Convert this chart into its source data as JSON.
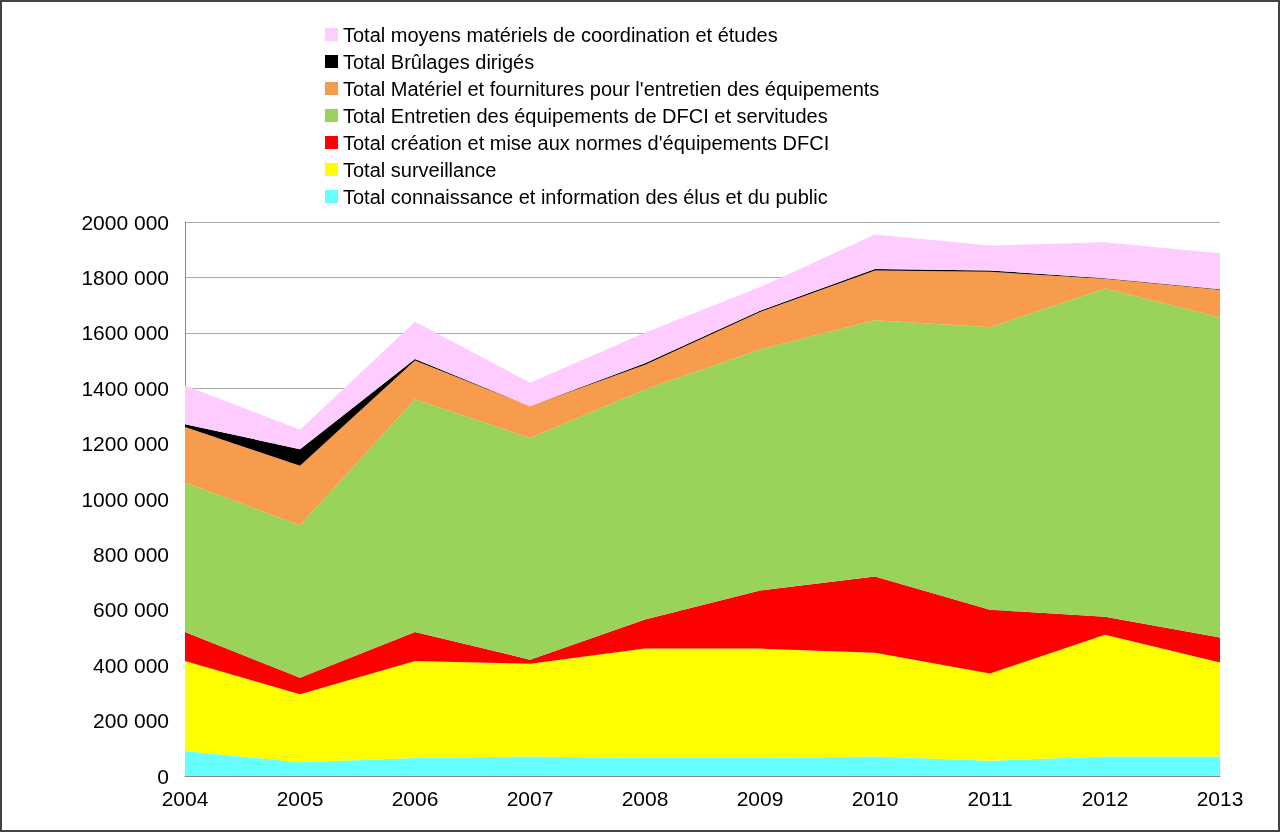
{
  "chart_data": {
    "type": "area",
    "stacked": true,
    "categories": [
      "2004",
      "2005",
      "2006",
      "2007",
      "2008",
      "2009",
      "2010",
      "2011",
      "2012",
      "2013"
    ],
    "series": [
      {
        "name": "Total connaissance et information des élus et du public",
        "color": "#66ffff",
        "values": [
          90000,
          50000,
          65000,
          70000,
          65000,
          65000,
          70000,
          55000,
          70000,
          70000
        ]
      },
      {
        "name": "Total surveillance",
        "color": "#ffff00",
        "values": [
          325000,
          245000,
          350000,
          335000,
          395000,
          395000,
          375000,
          315000,
          440000,
          340000
        ]
      },
      {
        "name": "Total création et mise aux normes d'équipements DFCI",
        "color": "#ff0000",
        "values": [
          105000,
          60000,
          105000,
          15000,
          105000,
          210000,
          275000,
          230000,
          65000,
          90000
        ]
      },
      {
        "name": "Total Entretien des équipements de DFCI et servitudes",
        "color": "#99d35a",
        "values": [
          540000,
          550000,
          840000,
          800000,
          830000,
          870000,
          925000,
          1020000,
          1185000,
          1155000
        ]
      },
      {
        "name": "Total Matériel et fournitures pour l'entretien des équipements",
        "color": "#f79c4c",
        "values": [
          200000,
          215000,
          140000,
          115000,
          90000,
          135000,
          180000,
          200000,
          35000,
          100000
        ]
      },
      {
        "name": "Total Brûlages dirigés",
        "color": "#000000",
        "values": [
          10000,
          60000,
          5000,
          0,
          5000,
          5000,
          5000,
          5000,
          2000,
          2000
        ]
      },
      {
        "name": "Total moyens matériels de coordination et études",
        "color": "#ffccff",
        "values": [
          140000,
          70000,
          135000,
          85000,
          110000,
          85000,
          125000,
          90000,
          130000,
          130000
        ]
      }
    ],
    "ylim": [
      0,
      2000000
    ],
    "yticks": [
      0,
      {
        "value": 200000,
        "label": "200 000"
      },
      {
        "value": 400000,
        "label": "400 000"
      },
      {
        "value": 600000,
        "label": "600 000"
      },
      {
        "value": 800000,
        "label": "800 000"
      },
      {
        "value": 1000000,
        "label": "1000 000"
      },
      {
        "value": 1200000,
        "label": "1200 000"
      },
      {
        "value": 1400000,
        "label": "1400 000"
      },
      {
        "value": 1600000,
        "label": "1600 000"
      },
      {
        "value": 1800000,
        "label": "1800 000"
      },
      {
        "value": 2000000,
        "label": "2000 000"
      }
    ],
    "grid": "y",
    "legend": "top",
    "marker": "none"
  }
}
